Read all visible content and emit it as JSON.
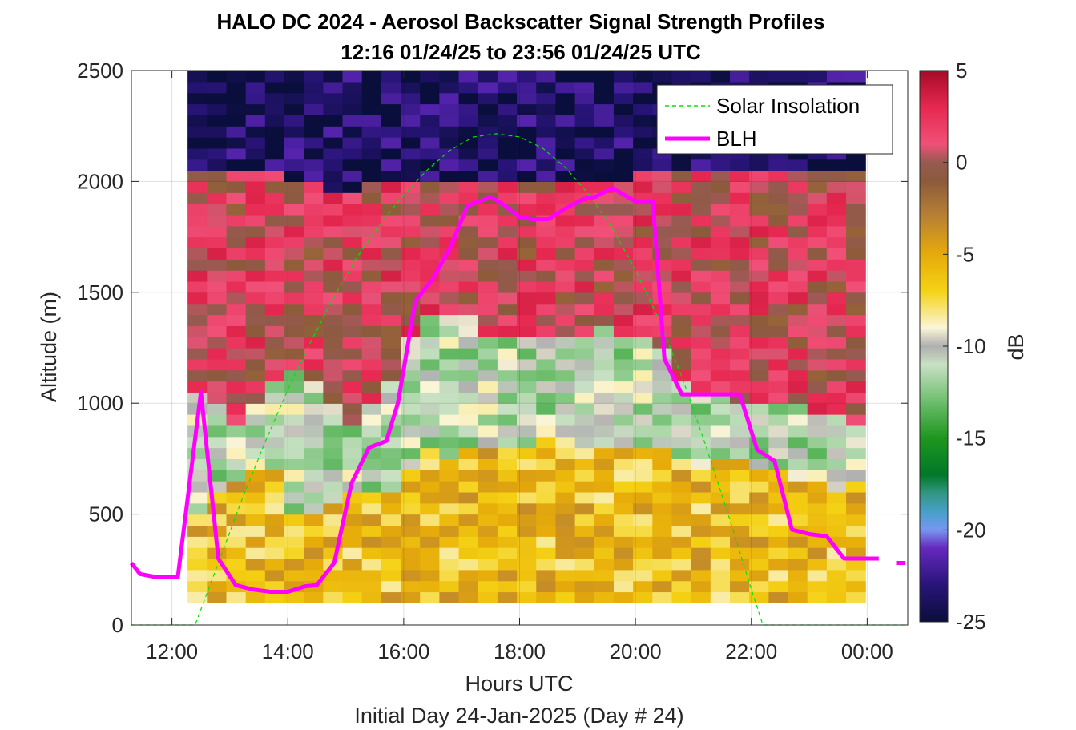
{
  "chart_data": {
    "type": "heatmap",
    "title_line1": "HALO DC 2024 - Aerosol Backscatter Signal Strength Profiles",
    "title_line2": "12:16 01/24/25 to 23:56 01/24/25  UTC",
    "xlabel": "Hours UTC",
    "xlabel2": "Initial Day 24-Jan-2025 (Day # 24)",
    "ylabel": "Altitude (m)",
    "colorbar_label": "dB",
    "xlim": [
      11.3,
      24.7
    ],
    "ylim": [
      0,
      2500
    ],
    "x_ticks": [
      12,
      14,
      16,
      18,
      20,
      22,
      24
    ],
    "x_tick_labels": [
      "12:00",
      "14:00",
      "16:00",
      "18:00",
      "20:00",
      "22:00",
      "00:00"
    ],
    "y_ticks": [
      0,
      500,
      1000,
      1500,
      2000,
      2500
    ],
    "y_tick_labels": [
      "0",
      "500",
      "1000",
      "1500",
      "2000",
      "2500"
    ],
    "colorbar_range": [
      -25,
      5
    ],
    "colorbar_ticks": [
      5,
      0,
      -5,
      -10,
      -15,
      -20,
      -25
    ],
    "colorbar_tick_labels": [
      "5",
      "0",
      "-5",
      "-10",
      "-15",
      "-20",
      "-25"
    ],
    "heatmap": {
      "x_start": 12.27,
      "x_end": 23.97,
      "columns": 35,
      "alt_start": 100,
      "alt_end": 2500,
      "alt_step": 50,
      "layers": [
        {
          "name": "surface",
          "top": [
            500,
            580,
            650,
            700,
            660,
            500,
            480,
            520,
            560,
            560,
            600,
            700,
            760,
            720,
            760,
            800,
            800,
            780,
            820,
            820,
            800,
            760,
            800,
            800,
            780,
            720,
            700,
            720,
            720,
            680,
            700,
            650,
            620,
            600,
            620
          ],
          "value": -6
        },
        {
          "name": "transition",
          "top": [
            1050,
            1000,
            900,
            1000,
            1100,
            1150,
            1100,
            1000,
            900,
            1000,
            1100,
            1300,
            1400,
            1400,
            1400,
            1300,
            1300,
            1300,
            1300,
            1300,
            1300,
            1350,
            1300,
            1300,
            1250,
            1100,
            1050,
            1050,
            1000,
            1000,
            1000,
            1000,
            950,
            950,
            900
          ],
          "value": -11
        },
        {
          "name": "aloft_aerosol",
          "top": [
            2050,
            2050,
            2050,
            2050,
            2050,
            2000,
            2000,
            1950,
            1950,
            2000,
            2000,
            2000,
            2000,
            2000,
            2000,
            2000,
            2000,
            2000,
            2000,
            2000,
            2000,
            2000,
            2000,
            2050,
            2050,
            2050,
            2050,
            2050,
            2050,
            2050,
            2050,
            2050,
            2050,
            2050,
            2050
          ],
          "value": 1
        },
        {
          "name": "free_troposphere",
          "top": [
            2500,
            2500,
            2500,
            2500,
            2500,
            2500,
            2500,
            2500,
            2500,
            2500,
            2500,
            2500,
            2500,
            2500,
            2500,
            2500,
            2500,
            2500,
            2500,
            2500,
            2500,
            2500,
            2500,
            2500,
            2500,
            2500,
            2500,
            2500,
            2500,
            2500,
            2500,
            2500,
            2500,
            2500,
            2500
          ],
          "value": -24
        }
      ]
    },
    "series": [
      {
        "name": "Solar Insolation",
        "color": "#00e600",
        "style": "dashed",
        "x": [
          11.3,
          12.4,
          12.8,
          13.2,
          13.6,
          14.0,
          14.4,
          14.8,
          15.2,
          15.6,
          16.0,
          16.4,
          16.8,
          17.2,
          17.6,
          18.0,
          18.4,
          18.8,
          19.2,
          19.6,
          20.0,
          20.4,
          20.8,
          21.2,
          21.6,
          22.0,
          22.2,
          22.3,
          24.7
        ],
        "y": [
          0,
          0,
          280,
          560,
          820,
          1060,
          1280,
          1480,
          1660,
          1810,
          1940,
          2050,
          2140,
          2200,
          2215,
          2200,
          2150,
          2060,
          1940,
          1790,
          1600,
          1380,
          1120,
          820,
          500,
          160,
          0,
          0,
          0
        ]
      },
      {
        "name": "BLH",
        "color": "#ff00ff",
        "style": "solid",
        "x": [
          11.3,
          11.45,
          11.75,
          12.1,
          12.5,
          12.8,
          13.1,
          13.4,
          13.7,
          14.0,
          14.3,
          14.5,
          14.8,
          15.1,
          15.4,
          15.7,
          15.9,
          16.2,
          16.5,
          16.8,
          17.1,
          17.5,
          17.7,
          18.0,
          18.2,
          18.5,
          18.8,
          19.1,
          19.3,
          19.6,
          20.0,
          20.3,
          20.5,
          20.8,
          21.1,
          21.4,
          21.8,
          22.1,
          22.4,
          22.7,
          23.0,
          23.3,
          23.6,
          24.0,
          24.2
        ],
        "y": [
          280,
          230,
          215,
          215,
          1050,
          300,
          180,
          160,
          150,
          150,
          175,
          180,
          280,
          640,
          800,
          830,
          1000,
          1460,
          1560,
          1700,
          1890,
          1930,
          1900,
          1840,
          1830,
          1830,
          1880,
          1920,
          1930,
          1970,
          1910,
          1910,
          1200,
          1040,
          1040,
          1040,
          1040,
          790,
          740,
          430,
          410,
          400,
          300,
          300,
          300
        ],
        "segments": [
          [
            0,
            44
          ]
        ]
      },
      {
        "name": "BLH_tail",
        "color": "#ff00ff",
        "style": "solid",
        "x": [
          24.5,
          24.65
        ],
        "y": [
          280,
          280
        ]
      }
    ],
    "legend": {
      "placement": "top-right",
      "entries": [
        "Solar Insolation",
        "BLH"
      ]
    }
  }
}
